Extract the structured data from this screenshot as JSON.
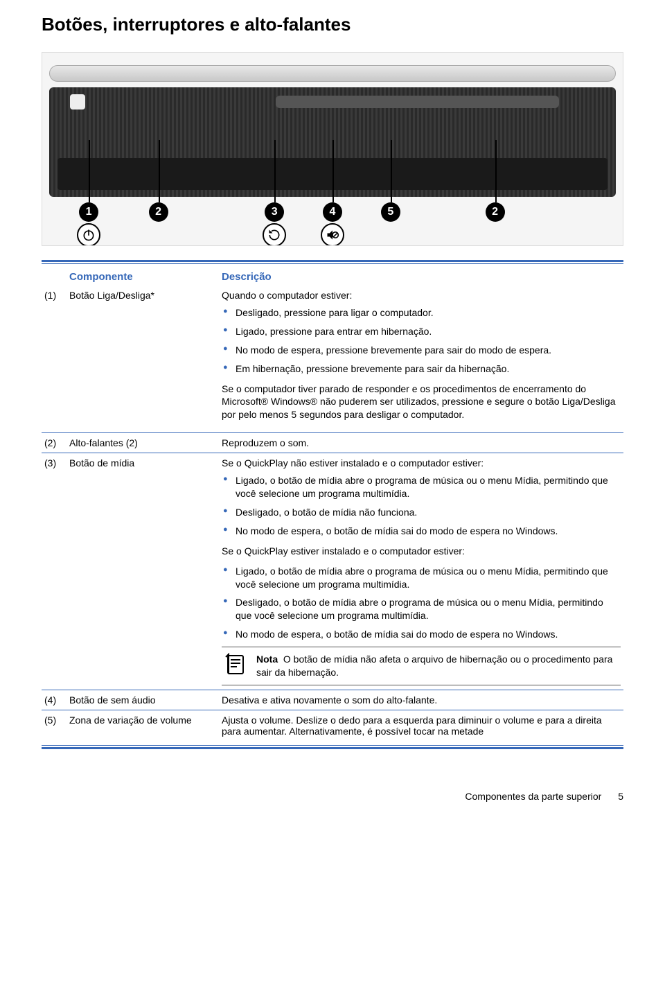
{
  "title": "Botões, interruptores e alto-falantes",
  "colors": {
    "accent": "#3668b8",
    "text": "#000000",
    "background": "#ffffff"
  },
  "diagram": {
    "callouts": [
      {
        "num": "1",
        "left_pct": 8,
        "icon": "power"
      },
      {
        "num": "2",
        "left_pct": 20,
        "icon": ""
      },
      {
        "num": "3",
        "left_pct": 40,
        "icon": "refresh"
      },
      {
        "num": "4",
        "left_pct": 50,
        "icon": "mute"
      },
      {
        "num": "5",
        "left_pct": 60,
        "icon": ""
      },
      {
        "num": "2",
        "left_pct": 78,
        "icon": ""
      }
    ]
  },
  "table": {
    "headers": {
      "component": "Componente",
      "description": "Descrição"
    },
    "rows": [
      {
        "num": "(1)",
        "name": "Botão Liga/Desliga*",
        "intro": "Quando o computador estiver:",
        "bullets1": [
          "Desligado, pressione para ligar o computador.",
          "Ligado, pressione para entrar em hibernação.",
          "No modo de espera, pressione brevemente para sair do modo de espera.",
          "Em hibernação, pressione brevemente para sair da hibernação."
        ],
        "para1": "Se o computador tiver parado de responder e os procedimentos de encerramento do Microsoft® Windows® não puderem ser utilizados, pressione e segure o botão Liga/Desliga por pelo menos 5 segundos para desligar o computador."
      },
      {
        "num": "(2)",
        "name": "Alto-falantes (2)",
        "desc": "Reproduzem o som."
      },
      {
        "num": "(3)",
        "name": "Botão de mídia",
        "intro": "Se o QuickPlay não estiver instalado e o computador estiver:",
        "bullets1": [
          "Ligado, o botão de mídia abre o programa de música ou o menu Mídia, permitindo que você selecione um programa multimídia.",
          "Desligado, o botão de mídia não funciona.",
          "No modo de espera, o botão de mídia sai do modo de espera no Windows."
        ],
        "mid": "Se o QuickPlay estiver instalado e o computador estiver:",
        "bullets2": [
          "Ligado, o botão de mídia abre o programa de música ou o menu Mídia, permitindo que você selecione um programa multimídia.",
          "Desligado, o botão de mídia abre o programa de música ou o menu Mídia, permitindo que você selecione um programa multimídia.",
          "No modo de espera, o botão de mídia sai do modo de espera no Windows."
        ],
        "note_label": "Nota",
        "note": "O botão de mídia não afeta o arquivo de hibernação ou o procedimento para sair da hibernação."
      },
      {
        "num": "(4)",
        "name": "Botão de sem áudio",
        "desc": "Desativa e ativa novamente o som do alto-falante."
      },
      {
        "num": "(5)",
        "name": "Zona de variação de volume",
        "desc": "Ajusta o volume. Deslize o dedo para a esquerda para diminuir o volume e para a direita para aumentar. Alternativamente, é possível tocar na metade"
      }
    ]
  },
  "footer": {
    "section": "Componentes da parte superior",
    "page": "5"
  }
}
